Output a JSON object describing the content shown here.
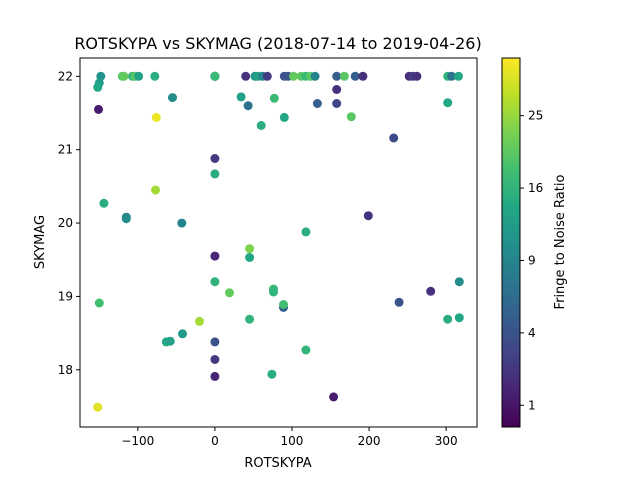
{
  "chart_data": {
    "type": "scatter",
    "title": "ROTSKYPA vs SKYMAG (2018-07-14 to 2019-04-26)",
    "xlabel": "ROTSKYPA",
    "ylabel": "SKYMAG",
    "xlim": [
      -175,
      340
    ],
    "ylim": [
      17.22,
      22.25
    ],
    "x_ticks": [
      -100,
      0,
      100,
      200,
      300
    ],
    "y_ticks": [
      18,
      19,
      20,
      21,
      22
    ],
    "x_tick_labels": [
      "−100",
      "0",
      "100",
      "200",
      "300"
    ],
    "y_tick_labels": [
      "18",
      "19",
      "20",
      "21",
      "22"
    ],
    "grid": false,
    "colormap": "viridis",
    "colorbar": {
      "label": "Fringe to Noise Ratio",
      "scale": "sqrt",
      "range": [
        0.49,
        33.6
      ],
      "ticks": [
        1,
        4,
        9,
        16,
        25
      ],
      "tick_labels": [
        "1",
        "4",
        "9",
        "16",
        "25"
      ]
    },
    "points": [
      {
        "x": -148,
        "y": 22.0,
        "c": 11
      },
      {
        "x": -150,
        "y": 21.91,
        "c": 12
      },
      {
        "x": -152,
        "y": 21.85,
        "c": 14
      },
      {
        "x": -151,
        "y": 21.55,
        "c": 1.2
      },
      {
        "x": -120,
        "y": 22.0,
        "c": 19
      },
      {
        "x": -118,
        "y": 22.0,
        "c": 21
      },
      {
        "x": -107,
        "y": 22.0,
        "c": 17
      },
      {
        "x": -103,
        "y": 22.0,
        "c": 20
      },
      {
        "x": -99,
        "y": 22.0,
        "c": 13
      },
      {
        "x": -78,
        "y": 22.0,
        "c": 15
      },
      {
        "x": -55,
        "y": 21.71,
        "c": 10
      },
      {
        "x": -76,
        "y": 21.44,
        "c": 32
      },
      {
        "x": 0,
        "y": 22.0,
        "c": 3.5
      },
      {
        "x": 0,
        "y": 22.0,
        "c": 9
      },
      {
        "x": 0,
        "y": 22.0,
        "c": 14
      },
      {
        "x": 0,
        "y": 22.0,
        "c": 17
      },
      {
        "x": 40,
        "y": 22.0,
        "c": 2
      },
      {
        "x": 52,
        "y": 22.0,
        "c": 11
      },
      {
        "x": 56,
        "y": 22.0,
        "c": 13
      },
      {
        "x": 62,
        "y": 22.0,
        "c": 9
      },
      {
        "x": 68,
        "y": 22.0,
        "c": 2.5
      },
      {
        "x": 90,
        "y": 22.0,
        "c": 4
      },
      {
        "x": 95,
        "y": 22.0,
        "c": 4
      },
      {
        "x": 102,
        "y": 22.0,
        "c": 21
      },
      {
        "x": 112,
        "y": 22.0,
        "c": 20
      },
      {
        "x": 118,
        "y": 22.0,
        "c": 17
      },
      {
        "x": 124,
        "y": 22.0,
        "c": 20
      },
      {
        "x": 130,
        "y": 22.0,
        "c": 9
      },
      {
        "x": 158,
        "y": 22.0,
        "c": 5
      },
      {
        "x": 168,
        "y": 22.0,
        "c": 20
      },
      {
        "x": 182,
        "y": 22.0,
        "c": 5
      },
      {
        "x": 192,
        "y": 22.0,
        "c": 2
      },
      {
        "x": 252,
        "y": 22.0,
        "c": 2
      },
      {
        "x": 257,
        "y": 22.0,
        "c": 2.5
      },
      {
        "x": 262,
        "y": 22.0,
        "c": 2
      },
      {
        "x": 302,
        "y": 22.0,
        "c": 16
      },
      {
        "x": 307,
        "y": 22.0,
        "c": 7
      },
      {
        "x": 316,
        "y": 22.0,
        "c": 14
      },
      {
        "x": 34,
        "y": 21.72,
        "c": 13
      },
      {
        "x": 43,
        "y": 21.6,
        "c": 7
      },
      {
        "x": 60,
        "y": 21.33,
        "c": 15
      },
      {
        "x": 77,
        "y": 21.7,
        "c": 17
      },
      {
        "x": 90,
        "y": 21.44,
        "c": 14
      },
      {
        "x": 133,
        "y": 21.63,
        "c": 5
      },
      {
        "x": 158,
        "y": 21.82,
        "c": 2
      },
      {
        "x": 158,
        "y": 21.63,
        "c": 3
      },
      {
        "x": 177,
        "y": 21.45,
        "c": 20
      },
      {
        "x": 232,
        "y": 21.16,
        "c": 3.5
      },
      {
        "x": 302,
        "y": 21.64,
        "c": 14
      },
      {
        "x": 0,
        "y": 20.88,
        "c": 2.5
      },
      {
        "x": 0,
        "y": 20.67,
        "c": 15
      },
      {
        "x": -77,
        "y": 20.45,
        "c": 26
      },
      {
        "x": -144,
        "y": 20.27,
        "c": 15
      },
      {
        "x": -115,
        "y": 20.08,
        "c": 8
      },
      {
        "x": -115,
        "y": 20.06,
        "c": 10
      },
      {
        "x": -43,
        "y": 20.0,
        "c": 9
      },
      {
        "x": 0,
        "y": 19.55,
        "c": 1.5
      },
      {
        "x": 45,
        "y": 19.65,
        "c": 23
      },
      {
        "x": 45,
        "y": 19.53,
        "c": 14
      },
      {
        "x": 118,
        "y": 19.88,
        "c": 15
      },
      {
        "x": 199,
        "y": 20.1,
        "c": 2
      },
      {
        "x": 0,
        "y": 19.2,
        "c": 16
      },
      {
        "x": 19,
        "y": 19.05,
        "c": 21
      },
      {
        "x": 76,
        "y": 19.1,
        "c": 17
      },
      {
        "x": 76,
        "y": 19.06,
        "c": 16
      },
      {
        "x": 89,
        "y": 18.85,
        "c": 5
      },
      {
        "x": 89,
        "y": 18.89,
        "c": 18
      },
      {
        "x": 239,
        "y": 18.92,
        "c": 4
      },
      {
        "x": 280,
        "y": 19.07,
        "c": 2
      },
      {
        "x": 317,
        "y": 19.2,
        "c": 10
      },
      {
        "x": -150,
        "y": 18.91,
        "c": 18
      },
      {
        "x": -20,
        "y": 18.66,
        "c": 26
      },
      {
        "x": 45,
        "y": 18.69,
        "c": 16
      },
      {
        "x": 302,
        "y": 18.69,
        "c": 15
      },
      {
        "x": 317,
        "y": 18.71,
        "c": 14
      },
      {
        "x": -42,
        "y": 18.49,
        "c": 12
      },
      {
        "x": -63,
        "y": 18.38,
        "c": 14
      },
      {
        "x": -58,
        "y": 18.39,
        "c": 13
      },
      {
        "x": 0,
        "y": 18.38,
        "c": 4
      },
      {
        "x": 0,
        "y": 18.14,
        "c": 2.5
      },
      {
        "x": 0,
        "y": 17.91,
        "c": 1.5
      },
      {
        "x": 118,
        "y": 18.27,
        "c": 16
      },
      {
        "x": 74,
        "y": 17.94,
        "c": 15
      },
      {
        "x": 154,
        "y": 17.63,
        "c": 1.2
      },
      {
        "x": -152,
        "y": 17.49,
        "c": 31
      }
    ]
  }
}
